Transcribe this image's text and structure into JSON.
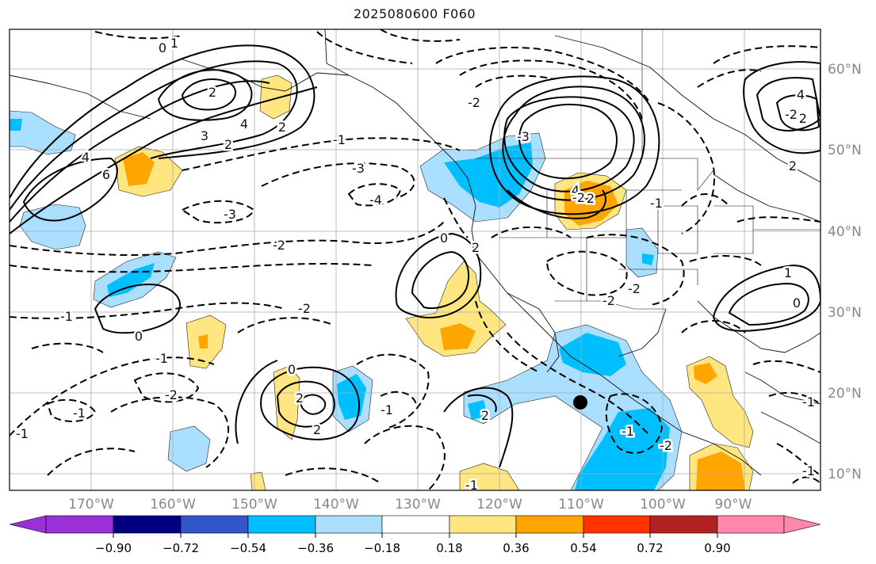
{
  "title": "2025080600 F060",
  "lon_labels": [
    "170°W",
    "160°W",
    "150°W",
    "140°W",
    "130°W",
    "120°W",
    "110°W",
    "100°W",
    "90°W"
  ],
  "lat_labels": [
    "60°N",
    "50°N",
    "40°N",
    "30°N",
    "20°N",
    "10°N"
  ],
  "colorbar": {
    "tick_labels": [
      "−0.90",
      "−0.72",
      "−0.54",
      "−0.36",
      "−0.18",
      "0.18",
      "0.36",
      "0.54",
      "0.72",
      "0.90"
    ],
    "colors": [
      "#9b30d8",
      "#000080",
      "#3355cc",
      "#00bfff",
      "#aadfff",
      "#ffffff",
      "#ffe680",
      "#ffa500",
      "#ff3300",
      "#b22222",
      "#ff88aa"
    ]
  },
  "contour_labels": {
    "solid": [
      "1",
      "3",
      "4",
      "2",
      "6",
      "4",
      "0",
      "2",
      "2",
      "0",
      "2",
      "2",
      "4",
      "2",
      "0",
      "2",
      "0",
      "2",
      "0",
      "1",
      "4",
      "2"
    ],
    "dashed": [
      "-1",
      "-2",
      "-3",
      "-4",
      "-2",
      "-2",
      "-3",
      "-1",
      "-2",
      "-1",
      "-1",
      "-2",
      "-1",
      "-1",
      "-2",
      "-2",
      "-1",
      "-2",
      "-1",
      "-1",
      "-1",
      "-1",
      "-2",
      "-3",
      "-2"
    ]
  },
  "marker": "storm-center-dot",
  "colors": {
    "shade_blue_light": "#aadfff",
    "shade_blue": "#00bfff",
    "shade_yellow": "#ffe680",
    "shade_orange": "#ffa500"
  }
}
